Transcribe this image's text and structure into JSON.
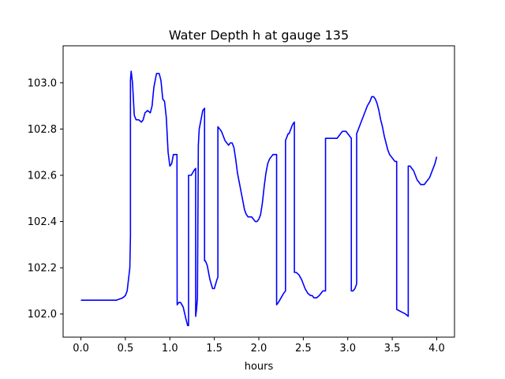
{
  "chart_data": {
    "type": "line",
    "title": "Water Depth h at gauge 135",
    "xlabel": "hours",
    "ylabel": "",
    "xlim": [
      -0.2,
      4.2
    ],
    "ylim": [
      101.9,
      103.16
    ],
    "x_ticks": [
      0.0,
      0.5,
      1.0,
      1.5,
      2.0,
      2.5,
      3.0,
      3.5,
      4.0
    ],
    "x_tick_labels": [
      "0.0",
      "0.5",
      "1.0",
      "1.5",
      "2.0",
      "2.5",
      "3.0",
      "3.5",
      "4.0"
    ],
    "y_ticks": [
      102.0,
      102.2,
      102.4,
      102.6,
      102.8,
      103.0
    ],
    "y_tick_labels": [
      "102.0",
      "102.2",
      "102.4",
      "102.6",
      "102.8",
      "103.0"
    ],
    "grid": false,
    "series": [
      {
        "color": "#0000ff",
        "x": [
          0.0,
          0.2,
          0.4,
          0.47,
          0.5,
          0.52,
          0.55,
          0.557,
          0.557,
          0.565,
          0.58,
          0.6,
          0.62,
          0.65,
          0.68,
          0.7,
          0.72,
          0.75,
          0.78,
          0.8,
          0.82,
          0.85,
          0.88,
          0.9,
          0.92,
          0.94,
          0.96,
          0.98,
          1.0,
          1.02,
          1.04,
          1.06,
          1.08,
          1.082,
          1.082,
          1.1,
          1.12,
          1.15,
          1.18,
          1.2,
          1.21,
          1.21,
          1.24,
          1.27,
          1.29,
          1.29,
          1.3,
          1.31,
          1.32,
          1.33,
          1.35,
          1.37,
          1.39,
          1.39,
          1.4,
          1.42,
          1.45,
          1.48,
          1.5,
          1.53,
          1.54,
          1.54,
          1.56,
          1.58,
          1.6,
          1.62,
          1.64,
          1.66,
          1.68,
          1.7,
          1.72,
          1.74,
          1.76,
          1.78,
          1.8,
          1.82,
          1.84,
          1.86,
          1.88,
          1.9,
          1.92,
          1.94,
          1.96,
          1.98,
          2.0,
          2.02,
          2.04,
          2.06,
          2.08,
          2.1,
          2.12,
          2.14,
          2.16,
          2.18,
          2.2,
          2.2,
          2.22,
          2.25,
          2.28,
          2.3,
          2.3,
          2.33,
          2.34,
          2.36,
          2.38,
          2.4,
          2.4,
          2.42,
          2.45,
          2.48,
          2.5,
          2.52,
          2.55,
          2.58,
          2.6,
          2.62,
          2.65,
          2.68,
          2.7,
          2.72,
          2.75,
          2.75,
          2.77,
          2.8,
          2.82,
          2.85,
          2.88,
          2.9,
          2.92,
          2.94,
          2.96,
          2.98,
          3.0,
          3.02,
          3.04,
          3.04,
          3.06,
          3.08,
          3.1,
          3.1,
          3.12,
          3.15,
          3.18,
          3.2,
          3.22,
          3.25,
          3.27,
          3.29,
          3.31,
          3.33,
          3.35,
          3.37,
          3.39,
          3.41,
          3.43,
          3.45,
          3.47,
          3.49,
          3.51,
          3.53,
          3.55,
          3.55,
          3.6,
          3.65,
          3.68,
          3.68,
          3.7,
          3.72,
          3.74,
          3.76,
          3.78,
          3.8,
          3.82,
          3.84,
          3.86,
          3.88,
          3.9,
          3.92,
          3.94,
          3.96,
          3.98,
          4.0
        ],
        "y": [
          102.06,
          102.06,
          102.06,
          102.07,
          102.08,
          102.1,
          102.2,
          102.34,
          103.01,
          103.05,
          103.0,
          102.86,
          102.84,
          102.84,
          102.83,
          102.84,
          102.87,
          102.88,
          102.87,
          102.9,
          102.98,
          103.04,
          103.04,
          103.01,
          102.93,
          102.92,
          102.85,
          102.7,
          102.64,
          102.65,
          102.69,
          102.69,
          102.69,
          102.04,
          102.04,
          102.05,
          102.05,
          102.03,
          101.98,
          101.95,
          101.95,
          102.6,
          102.6,
          102.62,
          102.63,
          101.99,
          102.02,
          102.07,
          102.73,
          102.8,
          102.84,
          102.88,
          102.89,
          102.23,
          102.23,
          102.21,
          102.15,
          102.11,
          102.11,
          102.15,
          102.16,
          102.81,
          102.8,
          102.79,
          102.77,
          102.75,
          102.74,
          102.73,
          102.74,
          102.74,
          102.72,
          102.67,
          102.61,
          102.57,
          102.53,
          102.49,
          102.45,
          102.43,
          102.42,
          102.42,
          102.42,
          102.41,
          102.4,
          102.4,
          102.41,
          102.43,
          102.48,
          102.55,
          102.61,
          102.65,
          102.67,
          102.68,
          102.69,
          102.69,
          102.69,
          102.04,
          102.05,
          102.07,
          102.09,
          102.1,
          102.75,
          102.78,
          102.78,
          102.8,
          102.82,
          102.83,
          102.18,
          102.18,
          102.17,
          102.15,
          102.13,
          102.11,
          102.09,
          102.08,
          102.08,
          102.07,
          102.07,
          102.08,
          102.09,
          102.1,
          102.1,
          102.76,
          102.76,
          102.76,
          102.76,
          102.76,
          102.76,
          102.77,
          102.78,
          102.79,
          102.79,
          102.79,
          102.78,
          102.77,
          102.76,
          102.1,
          102.1,
          102.11,
          102.13,
          102.78,
          102.8,
          102.83,
          102.86,
          102.88,
          102.9,
          102.92,
          102.94,
          102.94,
          102.93,
          102.91,
          102.88,
          102.84,
          102.81,
          102.77,
          102.74,
          102.71,
          102.69,
          102.68,
          102.67,
          102.66,
          102.66,
          102.02,
          102.01,
          102.0,
          101.99,
          102.64,
          102.64,
          102.63,
          102.62,
          102.6,
          102.58,
          102.57,
          102.56,
          102.56,
          102.56,
          102.57,
          102.58,
          102.59,
          102.61,
          102.63,
          102.65,
          102.68
        ]
      }
    ]
  }
}
